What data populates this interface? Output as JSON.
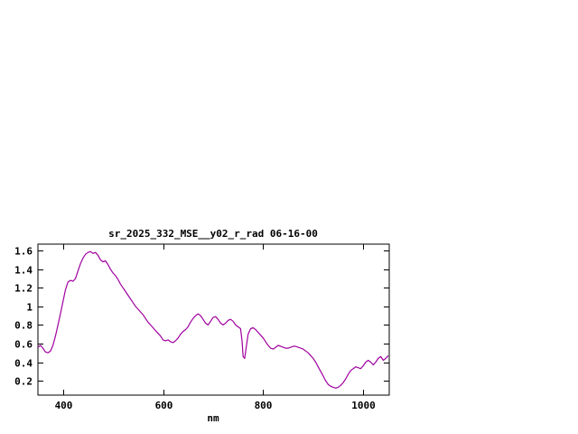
{
  "window": {
    "background": "#ffffff"
  },
  "chart_data": {
    "type": "line",
    "title": "sr_2025_332_MSE__y02_r_rad 06-16-00",
    "xlabel": "nm",
    "ylabel": "",
    "xlim": [
      350,
      1052
    ],
    "ylim": [
      0.045,
      1.67
    ],
    "x_ticks": [
      400,
      600,
      800,
      1000
    ],
    "y_ticks": [
      0.2,
      0.4,
      0.6,
      0.8,
      1,
      1.2,
      1.4,
      1.6
    ],
    "grid": false,
    "legend": "none",
    "line_color": "#a000a0",
    "axis_color": "#000000",
    "series": [
      {
        "name": "sr_2025_332_MSE__y02_r_rad",
        "points": [
          [
            350,
            0.56
          ],
          [
            355,
            0.58
          ],
          [
            360,
            0.55
          ],
          [
            365,
            0.51
          ],
          [
            370,
            0.5
          ],
          [
            375,
            0.52
          ],
          [
            380,
            0.58
          ],
          [
            385,
            0.68
          ],
          [
            390,
            0.8
          ],
          [
            395,
            0.92
          ],
          [
            400,
            1.05
          ],
          [
            405,
            1.18
          ],
          [
            410,
            1.26
          ],
          [
            415,
            1.28
          ],
          [
            420,
            1.27
          ],
          [
            425,
            1.3
          ],
          [
            430,
            1.38
          ],
          [
            435,
            1.46
          ],
          [
            440,
            1.52
          ],
          [
            445,
            1.56
          ],
          [
            450,
            1.58
          ],
          [
            455,
            1.59
          ],
          [
            460,
            1.57
          ],
          [
            465,
            1.58
          ],
          [
            470,
            1.55
          ],
          [
            475,
            1.5
          ],
          [
            480,
            1.48
          ],
          [
            485,
            1.49
          ],
          [
            490,
            1.45
          ],
          [
            495,
            1.4
          ],
          [
            500,
            1.36
          ],
          [
            505,
            1.33
          ],
          [
            510,
            1.29
          ],
          [
            515,
            1.24
          ],
          [
            520,
            1.2
          ],
          [
            525,
            1.16
          ],
          [
            530,
            1.12
          ],
          [
            535,
            1.08
          ],
          [
            540,
            1.04
          ],
          [
            545,
            1.0
          ],
          [
            550,
            0.97
          ],
          [
            555,
            0.94
          ],
          [
            560,
            0.91
          ],
          [
            565,
            0.87
          ],
          [
            570,
            0.83
          ],
          [
            575,
            0.8
          ],
          [
            580,
            0.77
          ],
          [
            585,
            0.74
          ],
          [
            590,
            0.71
          ],
          [
            595,
            0.68
          ],
          [
            600,
            0.64
          ],
          [
            605,
            0.63
          ],
          [
            610,
            0.64
          ],
          [
            615,
            0.62
          ],
          [
            620,
            0.61
          ],
          [
            625,
            0.63
          ],
          [
            630,
            0.66
          ],
          [
            635,
            0.7
          ],
          [
            640,
            0.73
          ],
          [
            645,
            0.75
          ],
          [
            650,
            0.78
          ],
          [
            655,
            0.83
          ],
          [
            660,
            0.87
          ],
          [
            665,
            0.9
          ],
          [
            670,
            0.92
          ],
          [
            675,
            0.9
          ],
          [
            680,
            0.86
          ],
          [
            685,
            0.82
          ],
          [
            690,
            0.8
          ],
          [
            695,
            0.84
          ],
          [
            700,
            0.88
          ],
          [
            705,
            0.89
          ],
          [
            710,
            0.86
          ],
          [
            715,
            0.82
          ],
          [
            720,
            0.8
          ],
          [
            725,
            0.82
          ],
          [
            730,
            0.85
          ],
          [
            735,
            0.86
          ],
          [
            740,
            0.84
          ],
          [
            745,
            0.8
          ],
          [
            750,
            0.78
          ],
          [
            755,
            0.76
          ],
          [
            758,
            0.62
          ],
          [
            760,
            0.46
          ],
          [
            763,
            0.44
          ],
          [
            766,
            0.55
          ],
          [
            770,
            0.7
          ],
          [
            775,
            0.76
          ],
          [
            780,
            0.77
          ],
          [
            785,
            0.75
          ],
          [
            790,
            0.72
          ],
          [
            795,
            0.69
          ],
          [
            800,
            0.66
          ],
          [
            805,
            0.62
          ],
          [
            810,
            0.58
          ],
          [
            815,
            0.55
          ],
          [
            820,
            0.54
          ],
          [
            825,
            0.56
          ],
          [
            830,
            0.58
          ],
          [
            835,
            0.57
          ],
          [
            840,
            0.56
          ],
          [
            845,
            0.55
          ],
          [
            850,
            0.55
          ],
          [
            855,
            0.56
          ],
          [
            860,
            0.57
          ],
          [
            865,
            0.57
          ],
          [
            870,
            0.56
          ],
          [
            875,
            0.55
          ],
          [
            880,
            0.54
          ],
          [
            885,
            0.52
          ],
          [
            890,
            0.5
          ],
          [
            895,
            0.47
          ],
          [
            900,
            0.44
          ],
          [
            905,
            0.4
          ],
          [
            910,
            0.35
          ],
          [
            915,
            0.3
          ],
          [
            920,
            0.25
          ],
          [
            925,
            0.2
          ],
          [
            930,
            0.16
          ],
          [
            935,
            0.14
          ],
          [
            940,
            0.13
          ],
          [
            945,
            0.12
          ],
          [
            950,
            0.13
          ],
          [
            955,
            0.15
          ],
          [
            960,
            0.18
          ],
          [
            965,
            0.22
          ],
          [
            970,
            0.27
          ],
          [
            975,
            0.31
          ],
          [
            980,
            0.33
          ],
          [
            985,
            0.35
          ],
          [
            990,
            0.34
          ],
          [
            995,
            0.33
          ],
          [
            1000,
            0.36
          ],
          [
            1005,
            0.4
          ],
          [
            1010,
            0.42
          ],
          [
            1015,
            0.4
          ],
          [
            1020,
            0.37
          ],
          [
            1025,
            0.4
          ],
          [
            1030,
            0.44
          ],
          [
            1035,
            0.46
          ],
          [
            1040,
            0.42
          ],
          [
            1045,
            0.44
          ],
          [
            1050,
            0.47
          ]
        ]
      }
    ]
  }
}
